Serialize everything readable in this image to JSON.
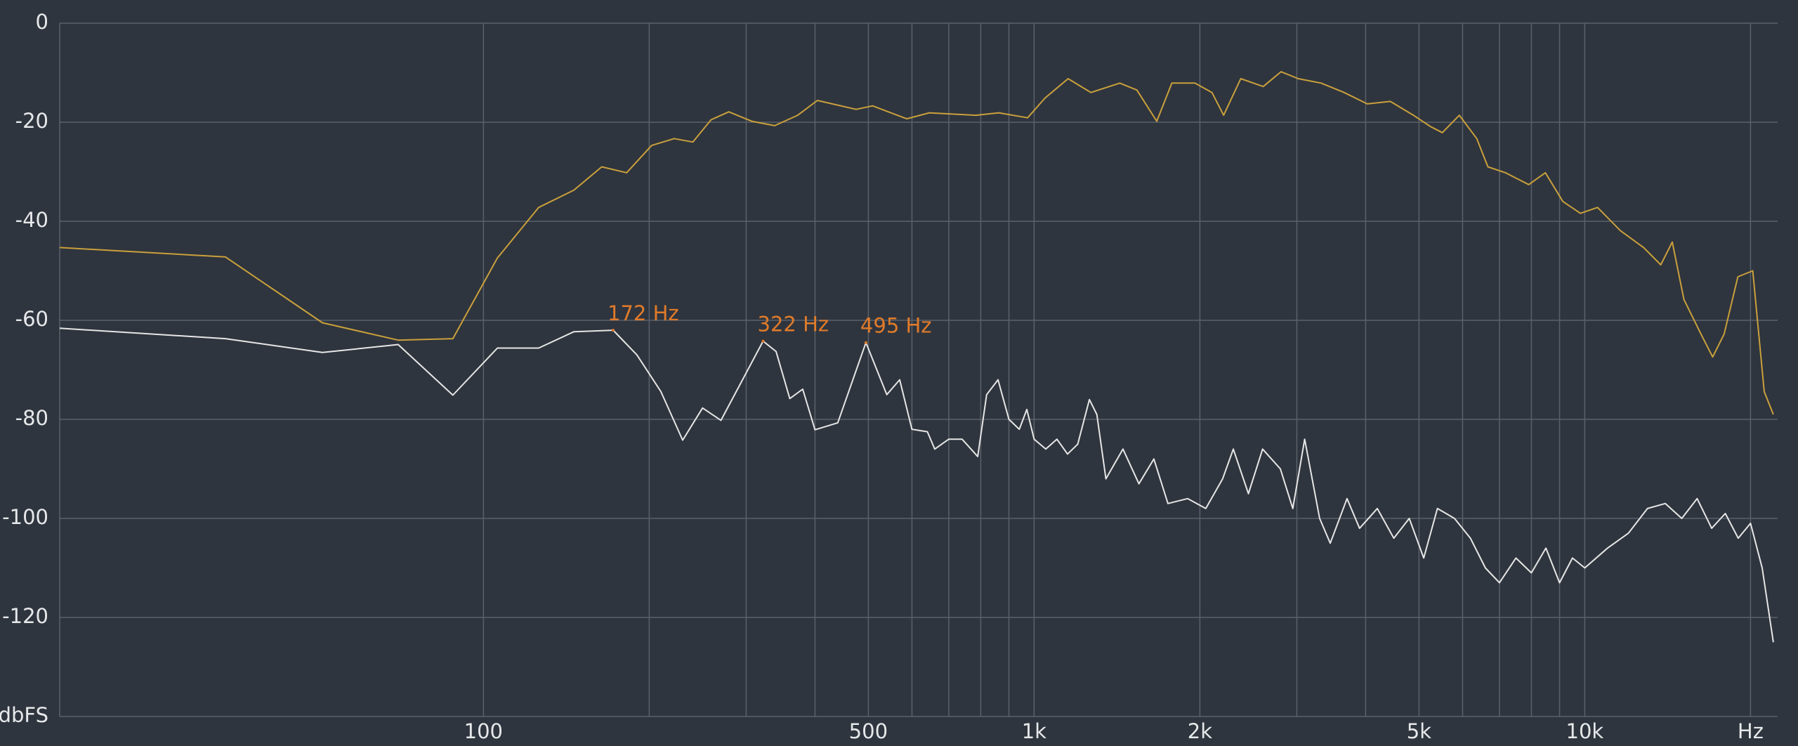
{
  "chart_data": {
    "type": "line",
    "xscale": "log",
    "grid": true,
    "xlim": [
      17,
      22400
    ],
    "ylim": [
      -140,
      0
    ],
    "yticks": [
      0,
      -20,
      -40,
      -60,
      -80,
      -100,
      -120,
      {
        "value": -140,
        "label": "dbFS"
      }
    ],
    "xticks": [
      100,
      500,
      {
        "value": 1000,
        "label": "1k"
      },
      {
        "value": 2000,
        "label": "2k"
      },
      {
        "value": 5000,
        "label": "5k"
      },
      {
        "value": 10000,
        "label": "10k"
      },
      {
        "value": 20000,
        "label": "Hz"
      }
    ],
    "xgrid_minor": [
      200,
      300,
      400,
      600,
      700,
      800,
      900,
      3000,
      4000,
      6000,
      7000,
      8000,
      9000
    ],
    "series": [
      {
        "color": "#c9a03c",
        "x": [
          17,
          34,
          51,
          70,
          88,
          106,
          126,
          146,
          164,
          182,
          202,
          222,
          240,
          259,
          279,
          307,
          338,
          372,
          404,
          430,
          475,
          509,
          587,
          645,
          784,
          863,
          973,
          1047,
          1153,
          1268,
          1431,
          1537,
          1670,
          1779,
          1959,
          2104,
          2209,
          2373,
          2607,
          2808,
          3018,
          3320,
          3656,
          4027,
          4436,
          4885,
          5250,
          5513,
          5919,
          6365,
          6669,
          7177,
          7910,
          8480,
          9125,
          9820,
          10550,
          11610,
          12790,
          13740,
          14420,
          15140,
          16260,
          17070,
          17910,
          18970,
          20190,
          21180,
          22000
        ],
        "values": [
          -45.3,
          -47.2,
          -60.5,
          -64,
          -63.7,
          -47.4,
          -37.2,
          -33.7,
          -29,
          -30.2,
          -24.7,
          -23.3,
          -24,
          -19.5,
          -17.9,
          -19.8,
          -20.7,
          -18.6,
          -15.6,
          -16.3,
          -17.4,
          -16.7,
          -19.3,
          -18.1,
          -18.6,
          -18.1,
          -19.1,
          -15.1,
          -11.2,
          -14,
          -12.1,
          -13.5,
          -19.8,
          -12.1,
          -12.1,
          -14,
          -18.6,
          -11.2,
          -12.8,
          -9.8,
          -11.2,
          -12.1,
          -14,
          -16.3,
          -15.8,
          -18.6,
          -20.9,
          -22.1,
          -18.6,
          -23.3,
          -29,
          -30.2,
          -32.6,
          -30.2,
          -36,
          -38.4,
          -37.2,
          -41.9,
          -45.3,
          -48.8,
          -44.2,
          -55.8,
          -62.8,
          -67.4,
          -62.8,
          -51.2,
          -50,
          -74.4,
          -79
        ]
      },
      {
        "color": "#e6e6e6",
        "x": [
          17,
          34,
          51,
          70,
          88,
          106,
          126,
          146,
          172,
          190,
          210,
          230,
          250,
          270,
          322,
          340,
          360,
          380,
          400,
          440,
          495,
          540,
          570,
          600,
          640,
          660,
          700,
          740,
          790,
          820,
          860,
          900,
          940,
          970,
          1000,
          1050,
          1100,
          1150,
          1200,
          1260,
          1300,
          1350,
          1450,
          1550,
          1650,
          1750,
          1900,
          2050,
          2200,
          2300,
          2450,
          2600,
          2800,
          2950,
          3100,
          3300,
          3450,
          3700,
          3900,
          4200,
          4500,
          4800,
          5100,
          5400,
          5800,
          6200,
          6600,
          7000,
          7500,
          8000,
          8500,
          9000,
          9500,
          10000,
          11000,
          12000,
          13000,
          14000,
          15000,
          16000,
          17000,
          18000,
          19000,
          20000,
          21000,
          22000
        ],
        "values": [
          -61.6,
          -63.7,
          -66.5,
          -64.9,
          -75.1,
          -65.6,
          -65.6,
          -62.3,
          -62,
          -67,
          -74.4,
          -84.2,
          -77.7,
          -80.2,
          -64.2,
          -66.3,
          -75.8,
          -73.9,
          -82.1,
          -80.7,
          -64.5,
          -75,
          -72,
          -82,
          -82.5,
          -86,
          -84,
          -84,
          -87.5,
          -75,
          -72,
          -80,
          -82,
          -78,
          -84,
          -86,
          -84,
          -87,
          -85,
          -76,
          -79,
          -92,
          -86,
          -93,
          -88,
          -97,
          -96,
          -98,
          -92,
          -86,
          -95,
          -86,
          -90,
          -98,
          -84,
          -100,
          -105,
          -96,
          -102,
          -98,
          -104,
          -100,
          -108,
          -98,
          -100,
          -104,
          -110,
          -113,
          -108,
          -111,
          -106,
          -113,
          -108,
          -110,
          -106,
          -103,
          -98,
          -97,
          -100,
          -96,
          -102,
          -99,
          -104,
          -101,
          -110,
          -125
        ]
      }
    ],
    "peaks": [
      {
        "label": "172 Hz",
        "x": 172,
        "y": -62
      },
      {
        "label": "322 Hz",
        "x": 322,
        "y": -64.2
      },
      {
        "label": "495 Hz",
        "x": 495,
        "y": -64.5
      }
    ]
  }
}
